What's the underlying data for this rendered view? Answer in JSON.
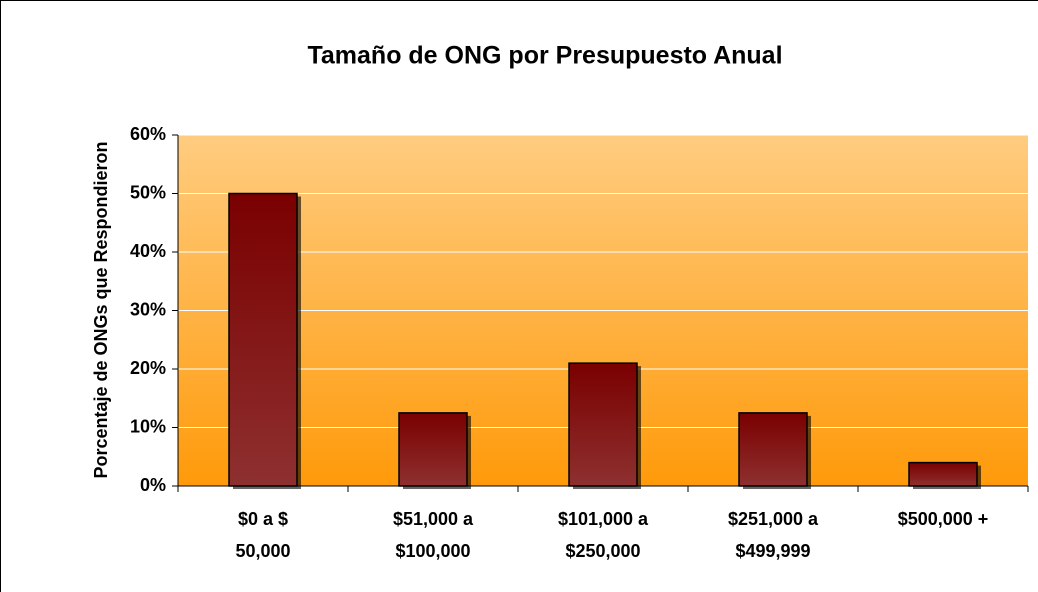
{
  "chart_data": {
    "type": "bar",
    "title": "Tamaño de ONG por Presupuesto Anual",
    "y_label": "Porcentaje de ONGs que Respondieron",
    "categories": [
      "$0 a  $\n50,000",
      "$51,000 a\n$100,000",
      "$101,000 a\n$250,000",
      "$251,000 a\n$499,999",
      "$500,000 +"
    ],
    "values": [
      50,
      12.5,
      21,
      12.5,
      4
    ],
    "color": "#8b1a1a",
    "ylim": [
      0,
      60
    ],
    "yticks": [
      {
        "value": 0,
        "label": "0%"
      },
      {
        "value": 10,
        "label": "10%"
      },
      {
        "value": 20,
        "label": "20%"
      },
      {
        "value": 30,
        "label": "30%"
      },
      {
        "value": 40,
        "label": "40%"
      },
      {
        "value": 50,
        "label": "50%"
      },
      {
        "value": 60,
        "label": "60%"
      }
    ],
    "grid": true
  }
}
